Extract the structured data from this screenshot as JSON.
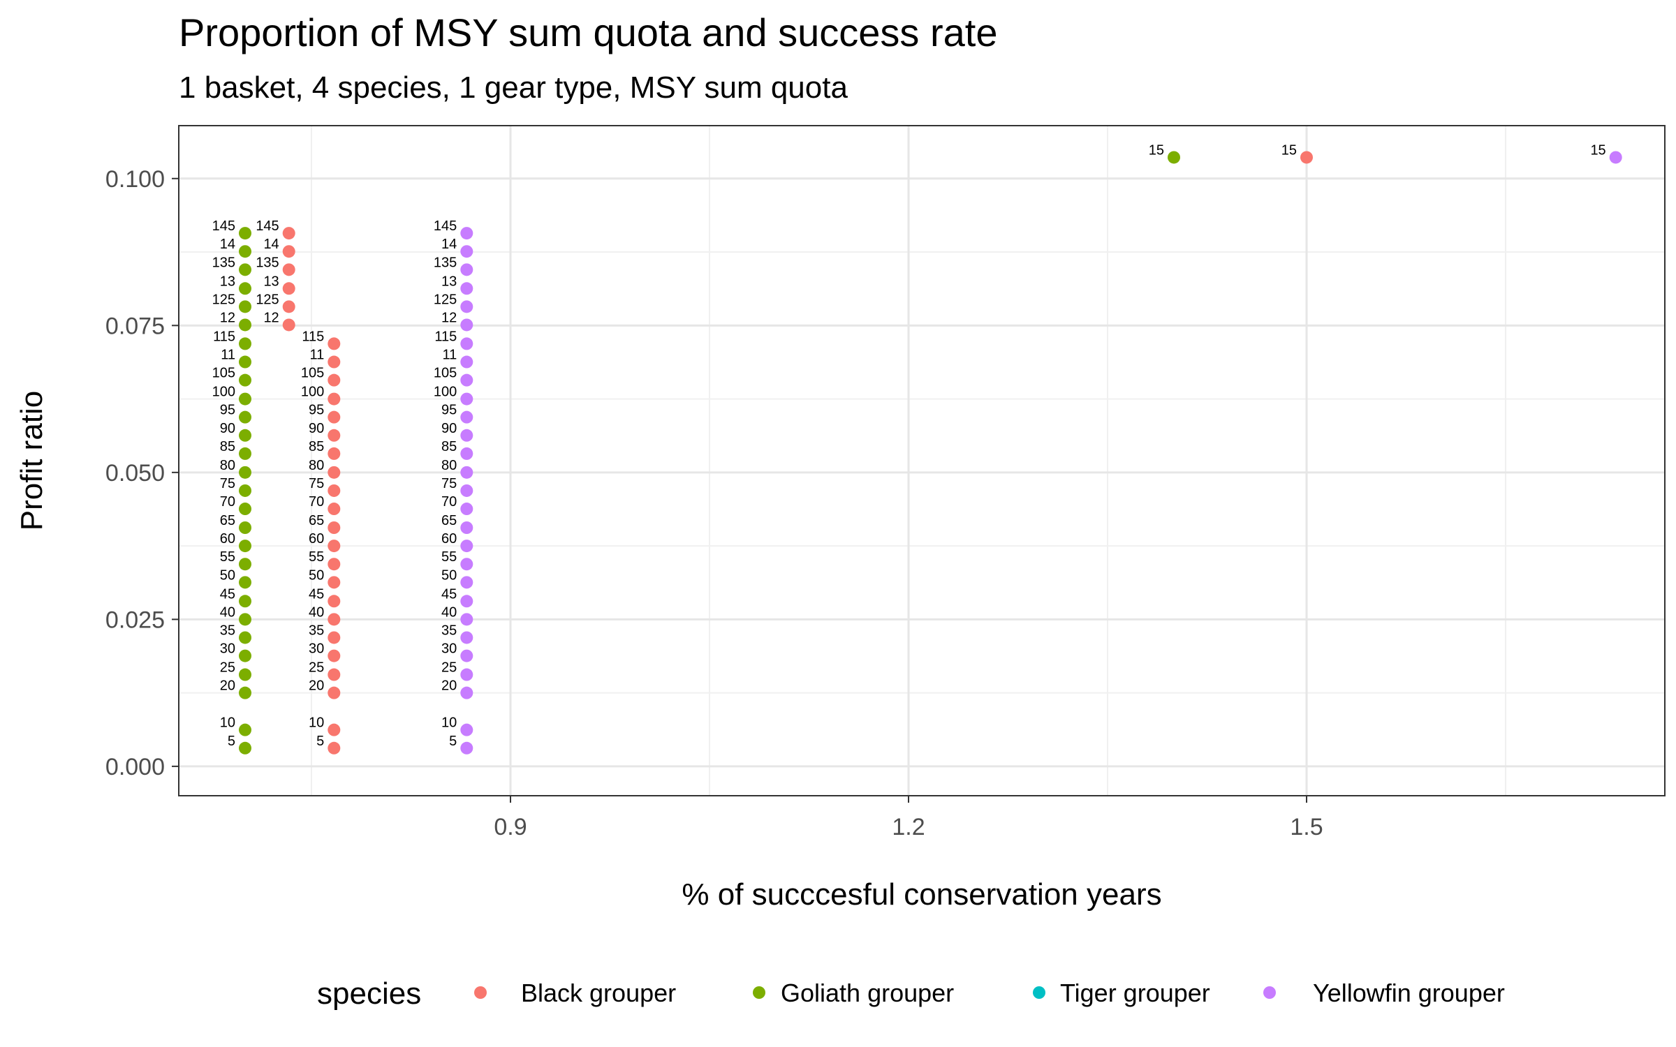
{
  "chart_data": {
    "type": "scatter",
    "title": "Proportion of MSY sum quota and success rate",
    "subtitle": "1 basket, 4 species, 1 gear type, MSY sum quota",
    "xlabel": "% of succcesful conservation years",
    "ylabel": "Profit ratio",
    "xlim": [
      0.65,
      1.77
    ],
    "ylim": [
      -0.005,
      0.109
    ],
    "x_ticks": [
      0.9,
      1.2,
      1.5
    ],
    "x_tick_labels": [
      "0.9",
      "1.2",
      "1.5"
    ],
    "y_ticks": [
      0,
      0.025,
      0.05,
      0.075,
      0.1
    ],
    "y_tick_labels": [
      "0.000",
      "0.025",
      "0.050",
      "0.075",
      "0.100"
    ],
    "grid": true,
    "legend_position": "bottom",
    "legend_title": "species",
    "legend": [
      {
        "name": "Black grouper",
        "color": "#F8766D"
      },
      {
        "name": "Goliath grouper",
        "color": "#7CAE00"
      },
      {
        "name": "Tiger grouper",
        "color": "#00BFC4"
      },
      {
        "name": "Yellowfin grouper",
        "color": "#C77CFF"
      }
    ],
    "series": [
      {
        "name": "Goliath grouper",
        "color": "#7CAE00",
        "points": [
          {
            "label": "5",
            "x": 0.7,
            "y": 0.0031
          },
          {
            "label": "10",
            "x": 0.7,
            "y": 0.0062
          },
          {
            "label": "20",
            "x": 0.7,
            "y": 0.0125
          },
          {
            "label": "25",
            "x": 0.7,
            "y": 0.0156
          },
          {
            "label": "30",
            "x": 0.7,
            "y": 0.0188
          },
          {
            "label": "35",
            "x": 0.7,
            "y": 0.0219
          },
          {
            "label": "40",
            "x": 0.7,
            "y": 0.025
          },
          {
            "label": "45",
            "x": 0.7,
            "y": 0.0281
          },
          {
            "label": "50",
            "x": 0.7,
            "y": 0.0313
          },
          {
            "label": "55",
            "x": 0.7,
            "y": 0.0344
          },
          {
            "label": "60",
            "x": 0.7,
            "y": 0.0375
          },
          {
            "label": "65",
            "x": 0.7,
            "y": 0.0406
          },
          {
            "label": "70",
            "x": 0.7,
            "y": 0.0438
          },
          {
            "label": "75",
            "x": 0.7,
            "y": 0.0469
          },
          {
            "label": "80",
            "x": 0.7,
            "y": 0.05
          },
          {
            "label": "85",
            "x": 0.7,
            "y": 0.0532
          },
          {
            "label": "90",
            "x": 0.7,
            "y": 0.0563
          },
          {
            "label": "95",
            "x": 0.7,
            "y": 0.0594
          },
          {
            "label": "100",
            "x": 0.7,
            "y": 0.0625
          },
          {
            "label": "105",
            "x": 0.7,
            "y": 0.0657
          },
          {
            "label": "11",
            "x": 0.7,
            "y": 0.0688
          },
          {
            "label": "115",
            "x": 0.7,
            "y": 0.0719
          },
          {
            "label": "12",
            "x": 0.7,
            "y": 0.0751
          },
          {
            "label": "125",
            "x": 0.7,
            "y": 0.0782
          },
          {
            "label": "13",
            "x": 0.7,
            "y": 0.0813
          },
          {
            "label": "135",
            "x": 0.7,
            "y": 0.0845
          },
          {
            "label": "14",
            "x": 0.7,
            "y": 0.0876
          },
          {
            "label": "145",
            "x": 0.7,
            "y": 0.0907
          },
          {
            "label": "15",
            "x": 1.4,
            "y": 0.1036
          }
        ]
      },
      {
        "name": "Black grouper",
        "color": "#F8766D",
        "points": [
          {
            "label": "5",
            "x": 0.767,
            "y": 0.0031
          },
          {
            "label": "10",
            "x": 0.767,
            "y": 0.0062
          },
          {
            "label": "20",
            "x": 0.767,
            "y": 0.0125
          },
          {
            "label": "25",
            "x": 0.767,
            "y": 0.0156
          },
          {
            "label": "30",
            "x": 0.767,
            "y": 0.0188
          },
          {
            "label": "35",
            "x": 0.767,
            "y": 0.0219
          },
          {
            "label": "40",
            "x": 0.767,
            "y": 0.025
          },
          {
            "label": "45",
            "x": 0.767,
            "y": 0.0281
          },
          {
            "label": "50",
            "x": 0.767,
            "y": 0.0313
          },
          {
            "label": "55",
            "x": 0.767,
            "y": 0.0344
          },
          {
            "label": "60",
            "x": 0.767,
            "y": 0.0375
          },
          {
            "label": "65",
            "x": 0.767,
            "y": 0.0406
          },
          {
            "label": "70",
            "x": 0.767,
            "y": 0.0438
          },
          {
            "label": "75",
            "x": 0.767,
            "y": 0.0469
          },
          {
            "label": "80",
            "x": 0.767,
            "y": 0.05
          },
          {
            "label": "85",
            "x": 0.767,
            "y": 0.0532
          },
          {
            "label": "90",
            "x": 0.767,
            "y": 0.0563
          },
          {
            "label": "95",
            "x": 0.767,
            "y": 0.0594
          },
          {
            "label": "100",
            "x": 0.767,
            "y": 0.0625
          },
          {
            "label": "105",
            "x": 0.767,
            "y": 0.0657
          },
          {
            "label": "11",
            "x": 0.767,
            "y": 0.0688
          },
          {
            "label": "115",
            "x": 0.767,
            "y": 0.0719
          },
          {
            "label": "12",
            "x": 0.733,
            "y": 0.0751
          },
          {
            "label": "125",
            "x": 0.733,
            "y": 0.0782
          },
          {
            "label": "13",
            "x": 0.733,
            "y": 0.0813
          },
          {
            "label": "135",
            "x": 0.733,
            "y": 0.0845
          },
          {
            "label": "14",
            "x": 0.733,
            "y": 0.0876
          },
          {
            "label": "145",
            "x": 0.733,
            "y": 0.0907
          },
          {
            "label": "15",
            "x": 1.5,
            "y": 0.1036
          }
        ]
      },
      {
        "name": "Yellowfin grouper",
        "color": "#C77CFF",
        "points": [
          {
            "label": "5",
            "x": 0.867,
            "y": 0.0031
          },
          {
            "label": "10",
            "x": 0.867,
            "y": 0.0062
          },
          {
            "label": "20",
            "x": 0.867,
            "y": 0.0125
          },
          {
            "label": "25",
            "x": 0.867,
            "y": 0.0156
          },
          {
            "label": "30",
            "x": 0.867,
            "y": 0.0188
          },
          {
            "label": "35",
            "x": 0.867,
            "y": 0.0219
          },
          {
            "label": "40",
            "x": 0.867,
            "y": 0.025
          },
          {
            "label": "45",
            "x": 0.867,
            "y": 0.0281
          },
          {
            "label": "50",
            "x": 0.867,
            "y": 0.0313
          },
          {
            "label": "55",
            "x": 0.867,
            "y": 0.0344
          },
          {
            "label": "60",
            "x": 0.867,
            "y": 0.0375
          },
          {
            "label": "65",
            "x": 0.867,
            "y": 0.0406
          },
          {
            "label": "70",
            "x": 0.867,
            "y": 0.0438
          },
          {
            "label": "75",
            "x": 0.867,
            "y": 0.0469
          },
          {
            "label": "80",
            "x": 0.867,
            "y": 0.05
          },
          {
            "label": "85",
            "x": 0.867,
            "y": 0.0532
          },
          {
            "label": "90",
            "x": 0.867,
            "y": 0.0563
          },
          {
            "label": "95",
            "x": 0.867,
            "y": 0.0594
          },
          {
            "label": "100",
            "x": 0.867,
            "y": 0.0625
          },
          {
            "label": "105",
            "x": 0.867,
            "y": 0.0657
          },
          {
            "label": "11",
            "x": 0.867,
            "y": 0.0688
          },
          {
            "label": "115",
            "x": 0.867,
            "y": 0.0719
          },
          {
            "label": "12",
            "x": 0.867,
            "y": 0.0751
          },
          {
            "label": "125",
            "x": 0.867,
            "y": 0.0782
          },
          {
            "label": "13",
            "x": 0.867,
            "y": 0.0813
          },
          {
            "label": "135",
            "x": 0.867,
            "y": 0.0845
          },
          {
            "label": "14",
            "x": 0.867,
            "y": 0.0876
          },
          {
            "label": "145",
            "x": 0.867,
            "y": 0.0907
          },
          {
            "label": "15",
            "x": 1.733,
            "y": 0.1036
          }
        ]
      }
    ]
  }
}
